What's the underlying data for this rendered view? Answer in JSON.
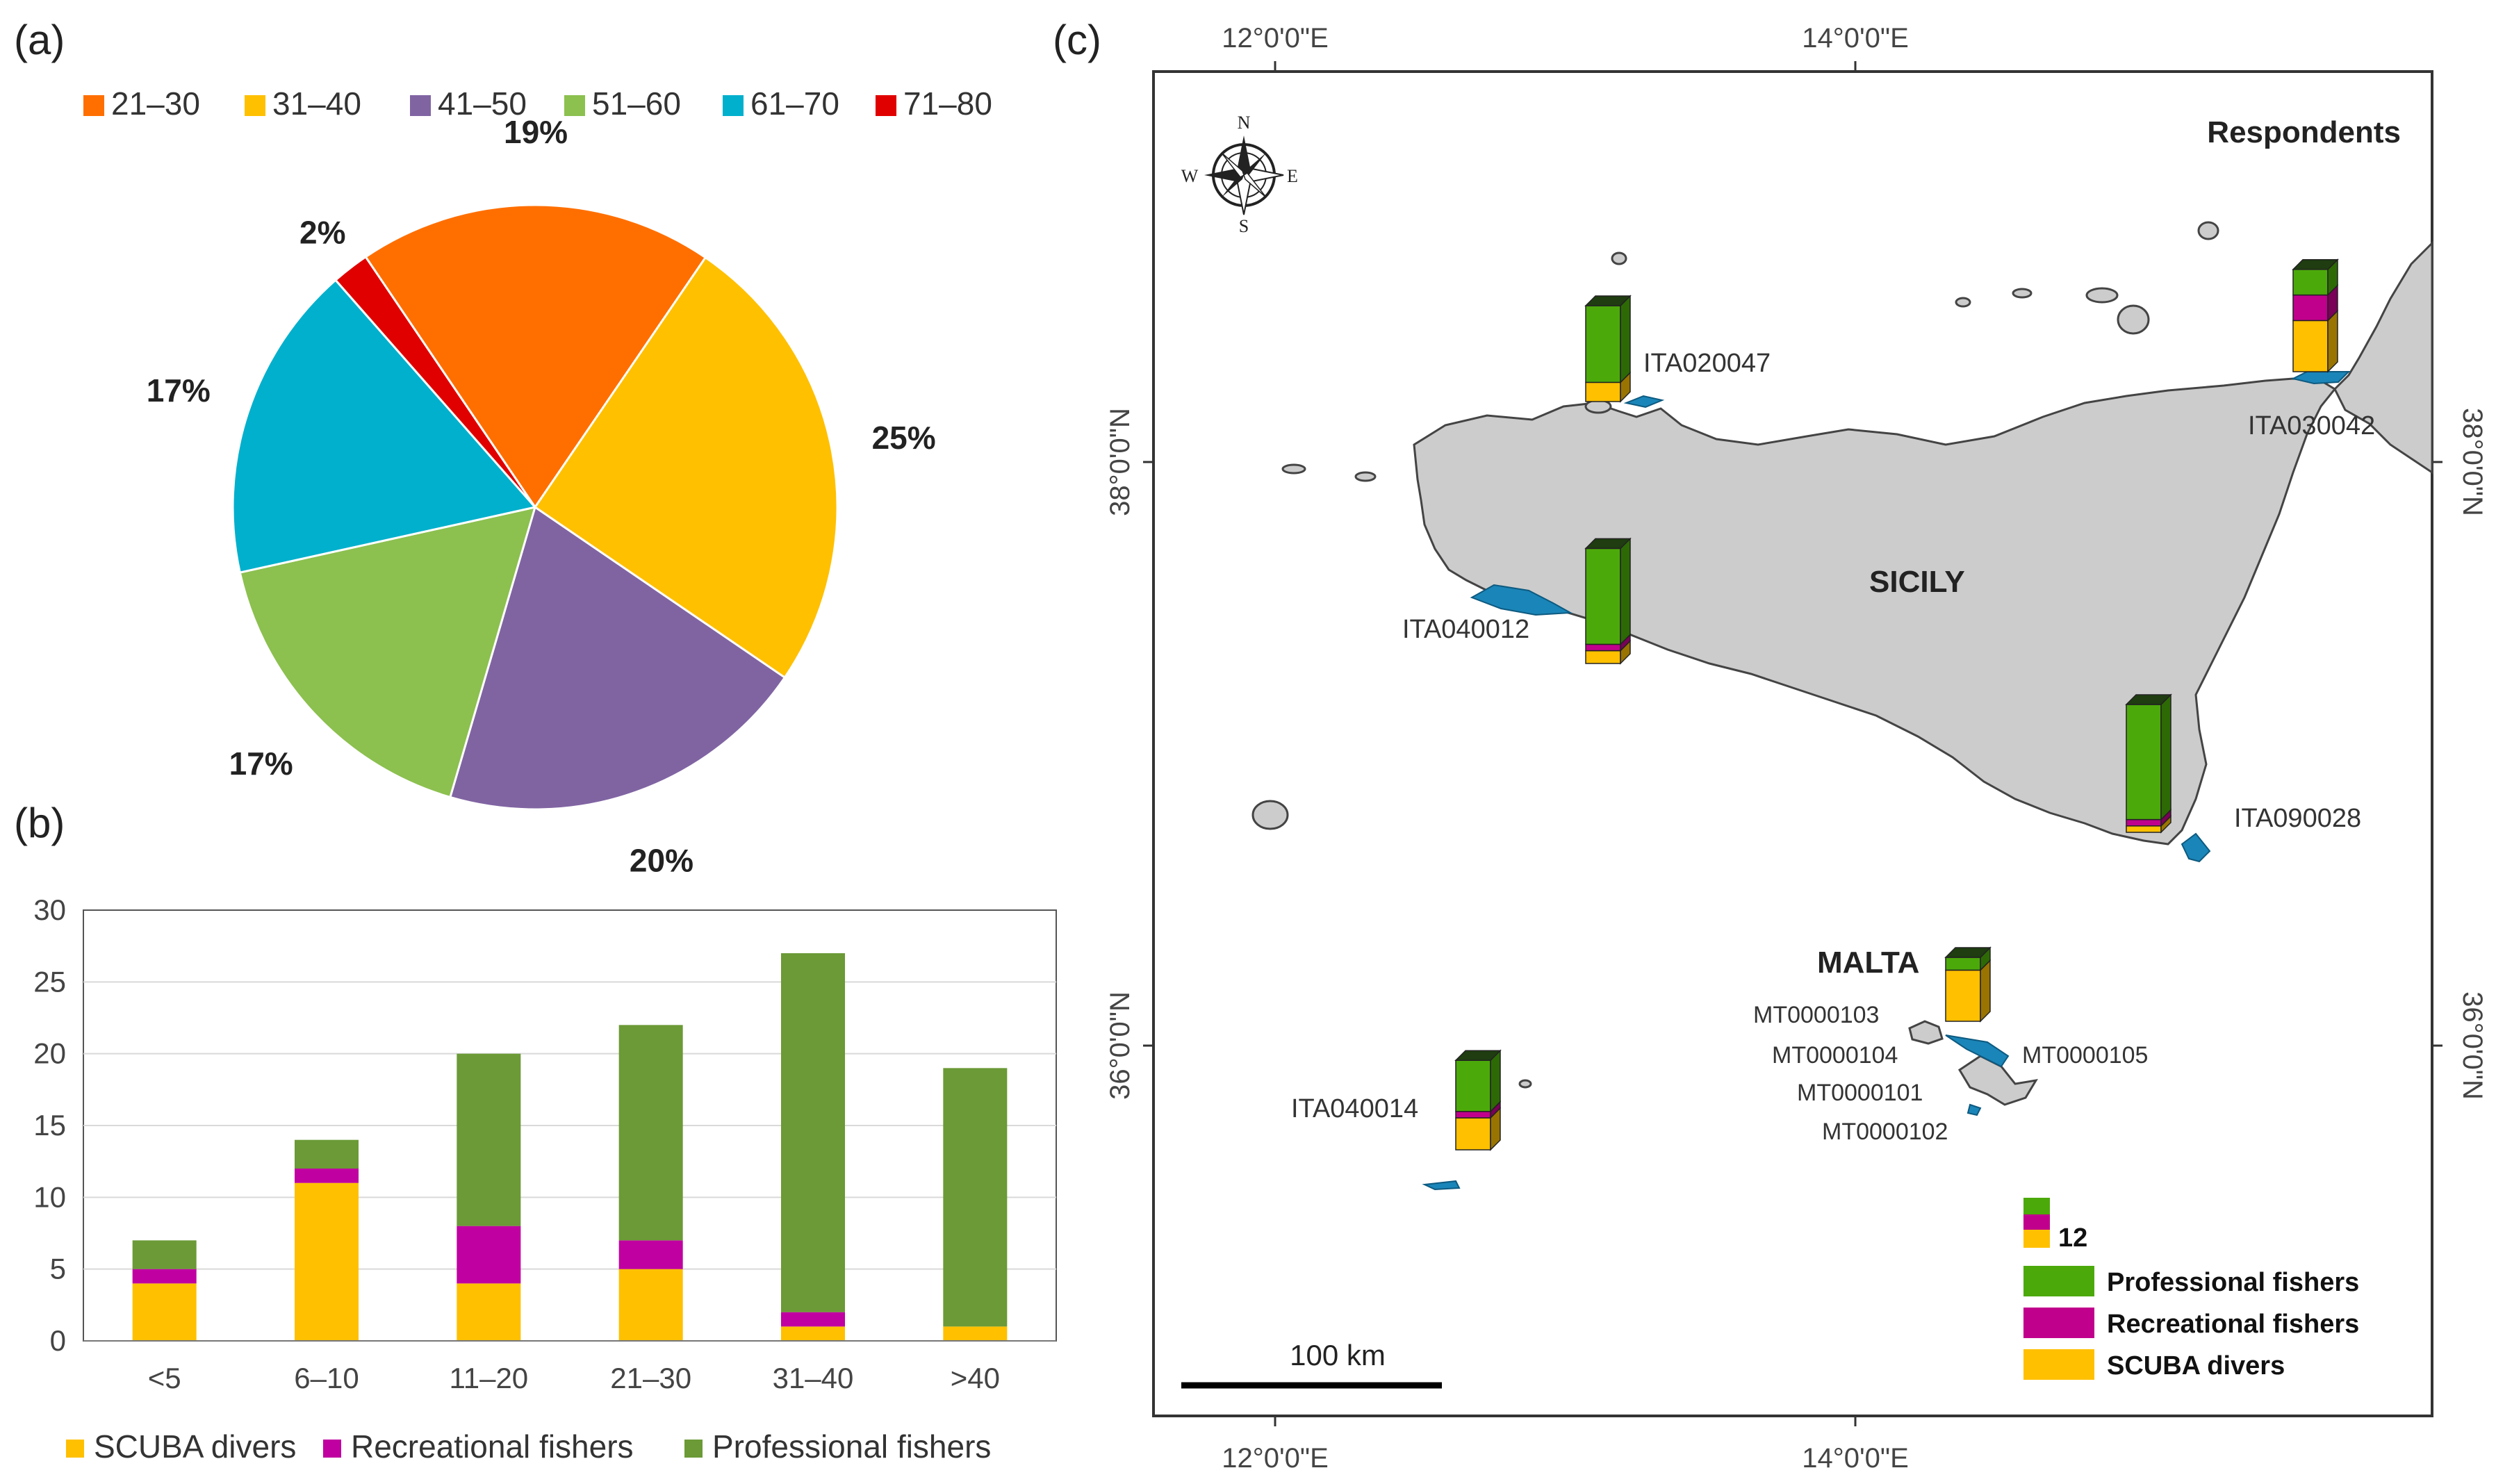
{
  "panel_a": {
    "letter": "(a)",
    "legend": [
      {
        "label": "21–30",
        "color": "#ff6f00"
      },
      {
        "label": "31–40",
        "color": "#ffc000"
      },
      {
        "label": "41–50",
        "color": "#8064a2"
      },
      {
        "label": "51–60",
        "color": "#8cc04f"
      },
      {
        "label": "61–70",
        "color": "#00b0cc"
      },
      {
        "label": "71–80",
        "color": "#e00000"
      }
    ]
  },
  "panel_b": {
    "letter": "(b)",
    "legend": [
      {
        "label": "SCUBA divers",
        "color": "#ffc000"
      },
      {
        "label": "Recreational fishers",
        "color": "#c000a0"
      },
      {
        "label": "Professional fishers",
        "color": "#6b9a36"
      }
    ]
  },
  "panel_c": {
    "letter": "(c)",
    "title": "Respondents",
    "top_axis": [
      "12°0'0\"E",
      "14°0'0\"E"
    ],
    "bottom_axis": [
      "12°0'0\"E",
      "14°0'0\"E"
    ],
    "left_axis": [
      "38°0'0\"N",
      "36°0'0\"N"
    ],
    "right_axis": [
      "38°0'0\"N",
      "36°0'0\"N"
    ],
    "compass": {
      "n": "N",
      "s": "S",
      "e": "E",
      "w": "W"
    },
    "island_labels": {
      "sicily": "SICILY",
      "malta": "MALTA"
    },
    "sites": [
      "ITA020047",
      "ITA030042",
      "ITA040012",
      "ITA090028",
      "ITA040014",
      "MT0000103",
      "MT0000104",
      "MT0000101",
      "MT0000102",
      "MT0000105"
    ],
    "site_bars": [
      {
        "site": "ITA020047",
        "professional": 12,
        "recreational": 0,
        "scuba": 3
      },
      {
        "site": "ITA030042",
        "professional": 4,
        "recreational": 4,
        "scuba": 8
      },
      {
        "site": "ITA040012",
        "professional": 15,
        "recreational": 1,
        "scuba": 2
      },
      {
        "site": "ITA090028",
        "professional": 18,
        "recreational": 1,
        "scuba": 1
      },
      {
        "site": "MALTA",
        "professional": 2,
        "recreational": 0,
        "scuba": 8
      },
      {
        "site": "ITA040014",
        "professional": 8,
        "recreational": 1,
        "scuba": 5
      }
    ],
    "scale_value": "12",
    "scale_label": "100 km",
    "legend": [
      {
        "label": "Professional fishers",
        "color": "#4ca90a"
      },
      {
        "label": "Recreational fishers",
        "color": "#c0008c"
      },
      {
        "label": "SCUBA divers",
        "color": "#ffc000"
      }
    ]
  },
  "chart_data": [
    {
      "type": "pie",
      "title": "",
      "categories": [
        "21–30",
        "31–40",
        "41–50",
        "51–60",
        "61–70",
        "71–80"
      ],
      "values": [
        19,
        25,
        20,
        17,
        17,
        2
      ],
      "labels": [
        "19%",
        "25%",
        "20%",
        "17%",
        "17%",
        "2%"
      ],
      "colors": [
        "#ff6f00",
        "#ffc000",
        "#8064a2",
        "#8cc04f",
        "#00b0cc",
        "#e00000"
      ]
    },
    {
      "type": "bar",
      "stacked": true,
      "title": "",
      "categories": [
        "<5",
        "6–10",
        "11–20",
        "21–30",
        "31–40",
        ">40"
      ],
      "series": [
        {
          "name": "SCUBA divers",
          "values": [
            4,
            11,
            4,
            5,
            1,
            1
          ],
          "color": "#ffc000"
        },
        {
          "name": "Recreational fishers",
          "values": [
            1,
            1,
            4,
            2,
            1,
            0
          ],
          "color": "#c000a0"
        },
        {
          "name": "Professional fishers",
          "values": [
            2,
            2,
            12,
            15,
            25,
            18
          ],
          "color": "#6b9a36"
        }
      ],
      "ylim": [
        0,
        30
      ],
      "yticks": [
        0,
        5,
        10,
        15,
        20,
        25,
        30
      ],
      "xlabel": "",
      "ylabel": ""
    }
  ]
}
